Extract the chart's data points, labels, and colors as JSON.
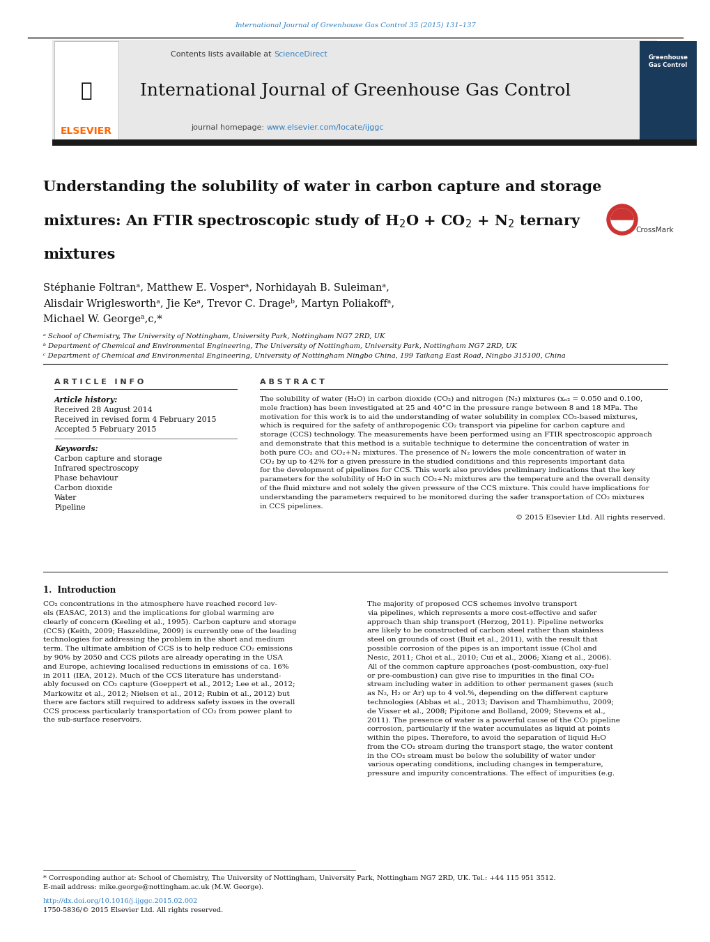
{
  "page_width": 10.2,
  "page_height": 13.51,
  "bg_color": "#ffffff",
  "top_url_text": "International Journal of Greenhouse Gas Control 35 (2015) 131–137",
  "top_url_color": "#2e7fc2",
  "journal_name": "International Journal of Greenhouse Gas Control",
  "contents_text": "Contents lists available at ",
  "sciencedirect_text": "ScienceDirect",
  "sciencedirect_color": "#2e7fc2",
  "journal_homepage_text": "journal homepage: ",
  "journal_url": "www.elsevier.com/locate/ijggc",
  "journal_url_color": "#2e7fc2",
  "elsevier_color": "#FF6600",
  "header_bg": "#e8e8e8",
  "dark_bar_color": "#1a1a1a",
  "title_line1": "Understanding the solubility of water in carbon capture and storage",
  "title_line2": "mixtures: An FTIR spectroscopic study of H$_2$O + CO$_2$ + N$_2$ ternary",
  "title_line3": "mixtures",
  "authors_line1": "Stéphanie Foltranᵃ, Matthew E. Vosperᵃ, Norhidayah B. Suleimanᵃ,",
  "authors_line2": "Alisdair Wriglesworthᵃ, Jie Keᵃ, Trevor C. Drageᵇ, Martyn Poliakoffᵃ,",
  "authors_line3": "Michael W. Georgeᵃ,c,*",
  "affil_a": "ᵃ School of Chemistry, The University of Nottingham, University Park, Nottingham NG7 2RD, UK",
  "affil_b": "ᵇ Department of Chemical and Environmental Engineering, The University of Nottingham, University Park, Nottingham NG7 2RD, UK",
  "affil_c": "ᶜ Department of Chemical and Environmental Engineering, University of Nottingham Ningbo China, 199 Taikang East Road, Ningbo 315100, China",
  "article_info_title": "A R T I C L E   I N F O",
  "abstract_title": "A B S T R A C T",
  "article_history_label": "Article history:",
  "received1": "Received 28 August 2014",
  "received2": "Received in revised form 4 February 2015",
  "accepted": "Accepted 5 February 2015",
  "keywords_label": "Keywords:",
  "keywords": [
    "Carbon capture and storage",
    "Infrared spectroscopy",
    "Phase behaviour",
    "Carbon dioxide",
    "Water",
    "Pipeline"
  ],
  "copyright": "© 2015 Elsevier Ltd. All rights reserved.",
  "section1_title": "1.  Introduction",
  "footer_text1": "* Corresponding author at: School of Chemistry, The University of Nottingham, University Park, Nottingham NG7 2RD, UK. Tel.: +44 115 951 3512.",
  "footer_text2": "E-mail address: mike.george@nottingham.ac.uk (M.W. George).",
  "footer_doi": "http://dx.doi.org/10.1016/j.ijggc.2015.02.002",
  "footer_issn": "1750-5836/© 2015 Elsevier Ltd. All rights reserved."
}
